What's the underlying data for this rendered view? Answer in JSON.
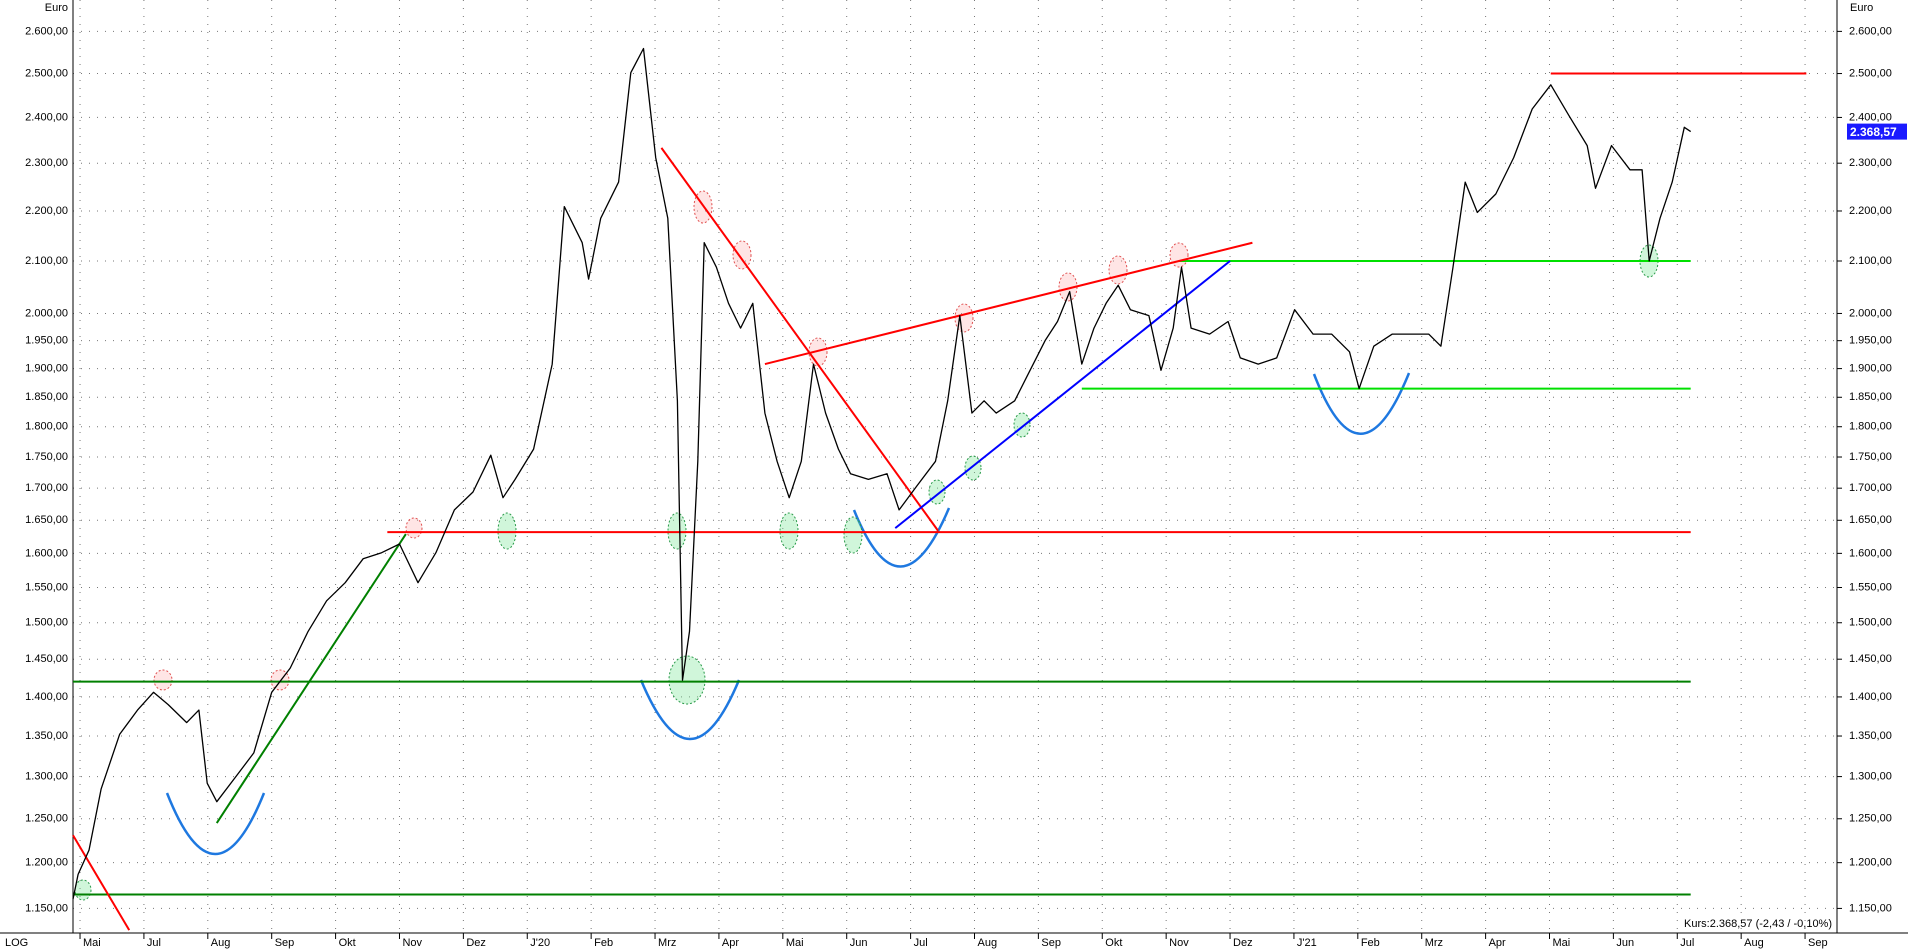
{
  "chart_data": {
    "type": "line",
    "y_unit": "Euro",
    "scale_label": "LOG",
    "log_scale": true,
    "grid": true,
    "color": "#000000",
    "xlim": [
      5.89,
      33.5
    ],
    "ylim": [
      1124,
      2677
    ],
    "xticks": [
      {
        "value": 6,
        "label": "Mai"
      },
      {
        "value": 7,
        "label": "Jul"
      },
      {
        "value": 8,
        "label": "Aug"
      },
      {
        "value": 9,
        "label": "Sep"
      },
      {
        "value": 10,
        "label": "Okt"
      },
      {
        "value": 11,
        "label": "Nov"
      },
      {
        "value": 12,
        "label": "Dez"
      },
      {
        "value": 13,
        "label": "J'20"
      },
      {
        "value": 14,
        "label": "Feb"
      },
      {
        "value": 15,
        "label": "Mrz"
      },
      {
        "value": 16,
        "label": "Apr"
      },
      {
        "value": 17,
        "label": "Mai"
      },
      {
        "value": 18,
        "label": "Jun"
      },
      {
        "value": 19,
        "label": "Jul"
      },
      {
        "value": 20,
        "label": "Aug"
      },
      {
        "value": 21,
        "label": "Sep"
      },
      {
        "value": 22,
        "label": "Okt"
      },
      {
        "value": 23,
        "label": "Nov"
      },
      {
        "value": 24,
        "label": "Dez"
      },
      {
        "value": 25,
        "label": "J'21"
      },
      {
        "value": 26,
        "label": "Feb"
      },
      {
        "value": 27,
        "label": "Mrz"
      },
      {
        "value": 28,
        "label": "Apr"
      },
      {
        "value": 29,
        "label": "Mai"
      },
      {
        "value": 30,
        "label": "Jun"
      },
      {
        "value": 31,
        "label": "Jul"
      },
      {
        "value": 32,
        "label": "Aug"
      },
      {
        "value": 33,
        "label": "Sep"
      }
    ],
    "yticks": [
      {
        "value": 2600,
        "label": "2.600,00"
      },
      {
        "value": 2500,
        "label": "2.500,00"
      },
      {
        "value": 2400,
        "label": "2.400,00"
      },
      {
        "value": 2300,
        "label": "2.300,00"
      },
      {
        "value": 2200,
        "label": "2.200,00"
      },
      {
        "value": 2100,
        "label": "2.100,00"
      },
      {
        "value": 2000,
        "label": "2.000,00"
      },
      {
        "value": 1950,
        "label": "1.950,00"
      },
      {
        "value": 1900,
        "label": "1.900,00"
      },
      {
        "value": 1850,
        "label": "1.850,00"
      },
      {
        "value": 1800,
        "label": "1.800,00"
      },
      {
        "value": 1750,
        "label": "1.750,00"
      },
      {
        "value": 1700,
        "label": "1.700,00"
      },
      {
        "value": 1650,
        "label": "1.650,00"
      },
      {
        "value": 1600,
        "label": "1.600,00"
      },
      {
        "value": 1550,
        "label": "1.550,00"
      },
      {
        "value": 1500,
        "label": "1.500,00"
      },
      {
        "value": 1450,
        "label": "1.450,00"
      },
      {
        "value": 1400,
        "label": "1.400,00"
      },
      {
        "value": 1350,
        "label": "1.350,00"
      },
      {
        "value": 1300,
        "label": "1.300,00"
      },
      {
        "value": 1250,
        "label": "1.250,00"
      },
      {
        "value": 1200,
        "label": "1.200,00"
      },
      {
        "value": 1150,
        "label": "1.150,00"
      }
    ],
    "x": [
      5.89,
      5.97,
      6.14,
      6.33,
      6.62,
      6.9,
      7.15,
      7.38,
      7.67,
      7.86,
      7.99,
      8.14,
      8.43,
      8.72,
      9.0,
      9.29,
      9.57,
      9.86,
      10.15,
      10.43,
      10.72,
      11.0,
      11.29,
      11.57,
      11.86,
      12.15,
      12.43,
      12.62,
      12.81,
      13.1,
      13.39,
      13.58,
      13.86,
      13.96,
      14.15,
      14.43,
      14.62,
      14.82,
      15.01,
      15.2,
      15.35,
      15.43,
      15.54,
      15.67,
      15.77,
      15.96,
      16.15,
      16.34,
      16.53,
      16.72,
      16.91,
      17.1,
      17.29,
      17.48,
      17.67,
      17.87,
      18.06,
      18.34,
      18.63,
      18.82,
      19.1,
      19.39,
      19.58,
      19.77,
      19.96,
      20.15,
      20.34,
      20.63,
      20.82,
      21.11,
      21.3,
      21.49,
      21.68,
      21.87,
      22.06,
      22.25,
      22.44,
      22.73,
      22.92,
      23.11,
      23.24,
      23.39,
      23.68,
      23.97,
      24.16,
      24.44,
      24.73,
      25.01,
      25.3,
      25.59,
      25.87,
      26.02,
      26.25,
      26.54,
      26.82,
      27.11,
      27.3,
      27.49,
      27.68,
      27.87,
      28.16,
      28.44,
      28.73,
      29.02,
      29.3,
      29.59,
      29.72,
      29.97,
      30.26,
      30.45,
      30.56,
      30.73,
      30.92,
      31.11,
      31.21
    ],
    "values": [
      1160,
      1187,
      1214,
      1285,
      1352,
      1383,
      1406,
      1390,
      1367,
      1383,
      1292,
      1270,
      1299,
      1329,
      1406,
      1438,
      1488,
      1531,
      1557,
      1592,
      1601,
      1614,
      1557,
      1601,
      1666,
      1694,
      1753,
      1685,
      1714,
      1763,
      1908,
      2209,
      2136,
      2065,
      2185,
      2260,
      2502,
      2559,
      2312,
      2185,
      1844,
      1422,
      1488,
      1743,
      2136,
      2088,
      2019,
      1973,
      2019,
      1823,
      1743,
      1685,
      1743,
      1908,
      1823,
      1763,
      1723,
      1714,
      1723,
      1666,
      1704,
      1743,
      1844,
      1996,
      1823,
      1844,
      1823,
      1844,
      1886,
      1951,
      1985,
      2041,
      1908,
      1973,
      2019,
      2053,
      2007,
      1996,
      1897,
      1973,
      2088,
      1973,
      1962,
      1985,
      1919,
      1908,
      1919,
      2007,
      1962,
      1962,
      1930,
      1865,
      1940,
      1962,
      1962,
      1962,
      1940,
      2088,
      2260,
      2197,
      2235,
      2312,
      2419,
      2474,
      2405,
      2338,
      2247,
      2338,
      2286,
      2286,
      2100,
      2185,
      2260,
      2378,
      2368.57
    ],
    "last_price": {
      "value": 2368.57,
      "label": "2.368,57"
    },
    "quote": "Kurs:2.368,57 (-2,43 / -0,10%)",
    "levels": [
      {
        "value": 1632,
        "from": 10.81,
        "to": 31.21,
        "color": "#ff0000"
      },
      {
        "value": 1420,
        "from": 5.89,
        "to": 31.21,
        "color": "#008000"
      },
      {
        "value": 1165,
        "from": 5.89,
        "to": 31.21,
        "color": "#008000"
      },
      {
        "value": 2100,
        "from": 23.2,
        "to": 31.21,
        "color": "#00e000"
      },
      {
        "value": 1865,
        "from": 21.68,
        "to": 31.21,
        "color": "#00e000"
      },
      {
        "value": 2500,
        "from": 29.02,
        "to": 33.02,
        "color": "#ff0000"
      }
    ],
    "trendlines": [
      {
        "x1": 5.89,
        "y1": 1231,
        "x2": 6.77,
        "y2": 1127,
        "color": "#ff0000"
      },
      {
        "x1": 8.14,
        "y1": 1245,
        "x2": 11.1,
        "y2": 1629,
        "color": "#008000"
      },
      {
        "x1": 15.1,
        "y1": 2333,
        "x2": 19.43,
        "y2": 1634,
        "color": "#ff0000"
      },
      {
        "x1": 16.72,
        "y1": 1908,
        "x2": 24.35,
        "y2": 2136,
        "color": "#ff0000"
      },
      {
        "x1": 18.76,
        "y1": 1638,
        "x2": 24.0,
        "y2": 2100,
        "color": "#0000ff"
      }
    ]
  }
}
